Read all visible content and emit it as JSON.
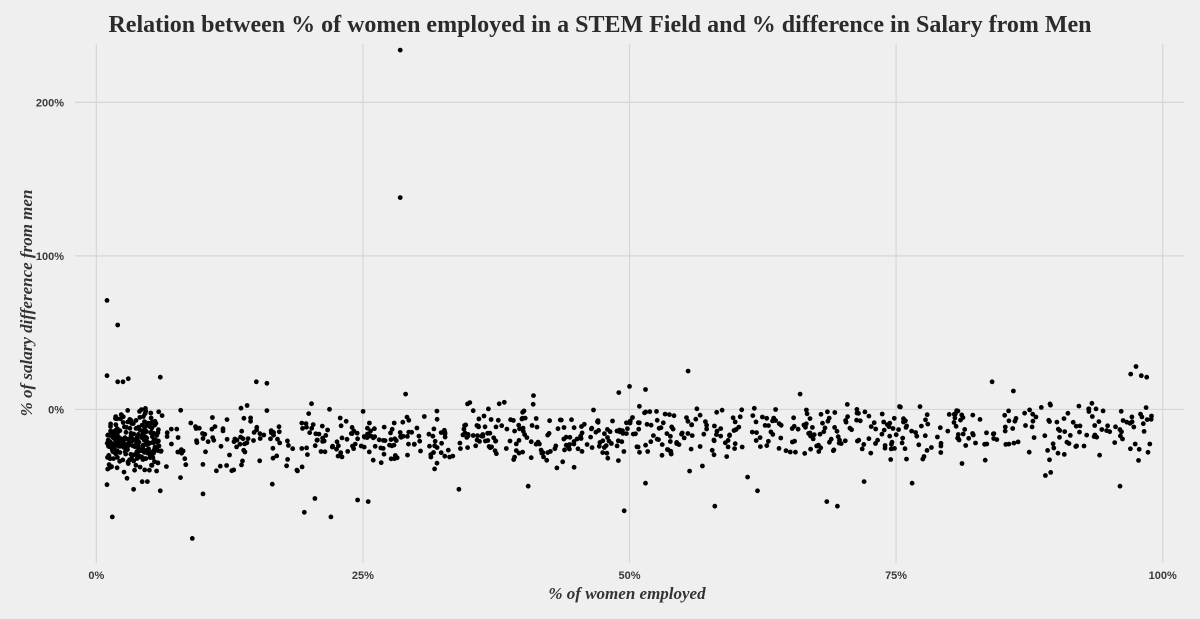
{
  "chart_data": {
    "type": "scatter",
    "title": "Relation between % of women employed in a STEM Field and % difference in Salary from Men",
    "xlabel": "% of women employed",
    "ylabel": "% of salary difference from men",
    "xlim": [
      -0.02,
      1.02
    ],
    "ylim": [
      -1.0,
      2.38
    ],
    "x_ticks": [
      0,
      0.25,
      0.5,
      0.75,
      1.0
    ],
    "x_tick_labels": [
      "0%",
      "25%",
      "50%",
      "75%",
      "100%"
    ],
    "y_ticks": [
      0,
      1,
      2
    ],
    "y_tick_labels": [
      "0%",
      "100%",
      "200%"
    ],
    "grid": true,
    "point_color": "#000000",
    "points": [
      [
        0.285,
        2.34
      ],
      [
        0.285,
        1.38
      ],
      [
        0.01,
        0.71
      ],
      [
        0.02,
        0.55
      ],
      [
        0.015,
        -0.7
      ],
      [
        0.09,
        -0.84
      ],
      [
        0.22,
        -0.7
      ],
      [
        0.195,
        -0.67
      ],
      [
        0.01,
        0.22
      ],
      [
        0.03,
        0.2
      ],
      [
        0.02,
        0.18
      ],
      [
        0.025,
        0.18
      ],
      [
        0.06,
        0.21
      ],
      [
        0.15,
        0.18
      ],
      [
        0.16,
        0.17
      ],
      [
        0.555,
        0.25
      ],
      [
        0.5,
        0.15
      ],
      [
        0.515,
        0.13
      ],
      [
        0.84,
        0.18
      ],
      [
        0.86,
        0.12
      ],
      [
        0.97,
        0.23
      ],
      [
        0.975,
        0.28
      ],
      [
        0.98,
        0.22
      ],
      [
        0.985,
        0.21
      ],
      [
        0.29,
        0.1
      ],
      [
        0.41,
        0.09
      ],
      [
        0.49,
        0.11
      ],
      [
        0.66,
        0.1
      ],
      [
        0.495,
        -0.66
      ],
      [
        0.58,
        -0.63
      ],
      [
        0.685,
        -0.6
      ],
      [
        0.695,
        -0.63
      ],
      [
        0.96,
        -0.5
      ],
      [
        0.89,
        -0.43
      ],
      [
        0.895,
        -0.41
      ],
      [
        0.255,
        -0.6
      ],
      [
        0.245,
        -0.59
      ],
      [
        0.01,
        -0.49
      ],
      [
        0.035,
        -0.52
      ],
      [
        0.06,
        -0.53
      ],
      [
        0.205,
        -0.58
      ],
      [
        0.34,
        -0.52
      ],
      [
        0.405,
        -0.5
      ],
      [
        0.515,
        -0.48
      ],
      [
        0.62,
        -0.53
      ],
      [
        0.765,
        -0.48
      ],
      [
        0.72,
        -0.47
      ],
      [
        0.1,
        -0.55
      ]
    ],
    "cloud": {
      "n": 1000,
      "x_range": [
        0.01,
        0.99
      ],
      "y_center_at_x0": -0.22,
      "y_center_at_x1": -0.11,
      "y_spread": 0.09
    }
  }
}
